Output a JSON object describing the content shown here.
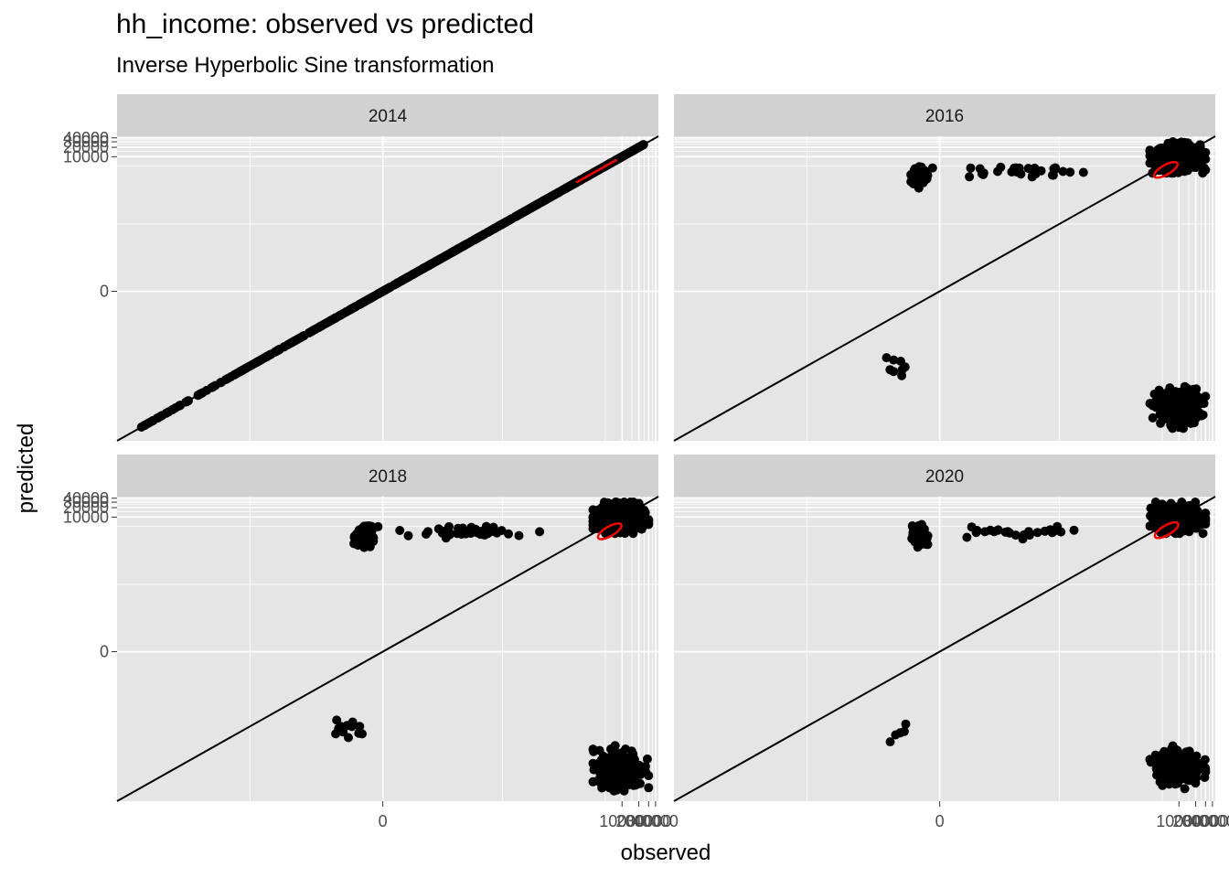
{
  "title": "hh_income: observed vs predicted",
  "subtitle": "Inverse Hyperbolic Sine transformation",
  "colors": {
    "panel_bg": "#e5e5e5",
    "strip_bg": "#d1d1d1",
    "grid": "#ffffff",
    "points": "#000000",
    "reference_line": "#000000",
    "ellipse": "#ff0000"
  },
  "chart_data": {
    "type": "scatter",
    "xlabel": "observed",
    "ylabel": "predicted",
    "scale": "asinh",
    "grid": true,
    "x_ticks": [
      "0",
      "10000",
      "20000",
      "30000",
      "40000"
    ],
    "y_ticks": [
      "0",
      "10000",
      "20000",
      "30000",
      "40000"
    ],
    "x_range": [
      -30000,
      45000
    ],
    "y_range": [
      -30000,
      45000
    ],
    "reference_line": "y = x",
    "panels": [
      {
        "label": "2014",
        "groups": [
          {
            "x": [
              -25000,
              -200,
              25000
            ],
            "y": [
              -25000,
              -200,
              25000
            ],
            "n": 700,
            "sd_x": 0,
            "sd_y": 0,
            "diag": true
          }
        ],
        "ellipse": {
          "type": "segment",
          "x": [
            1500,
            8000
          ],
          "y": [
            1500,
            8000
          ]
        }
      },
      {
        "label": "2016",
        "groups": [
          {
            "x": [
              3000,
              30000
            ],
            "y": [
              3000,
              30000
            ],
            "n": 430
          },
          {
            "x": [
              -1.5,
              -0.5
            ],
            "y": [
              1000,
              6000
            ],
            "n": 110
          },
          {
            "x": [
              -0.3,
              500
            ],
            "y": [
              2000,
              6000
            ],
            "n": 30
          },
          {
            "x": [
              3000,
              30000
            ],
            "y": [
              -12000,
              -500
            ],
            "n": 260
          },
          {
            "x": [
              -6,
              -1
            ],
            "y": [
              -400,
              -60
            ],
            "n": 8
          }
        ],
        "ellipse": {
          "cx": 5800,
          "cy": 3800,
          "rx": 0.55,
          "ry": 0.35
        }
      },
      {
        "label": "2018",
        "groups": [
          {
            "x": [
              3000,
              30000
            ],
            "y": [
              3000,
              30000
            ],
            "n": 440
          },
          {
            "x": [
              -1.5,
              -0.4
            ],
            "y": [
              1000,
              6000
            ],
            "n": 120
          },
          {
            "x": [
              -0.2,
              600
            ],
            "y": [
              2000,
              6000
            ],
            "n": 40
          },
          {
            "x": [
              3000,
              30000
            ],
            "y": [
              -14000,
              -500
            ],
            "n": 280
          },
          {
            "x": [
              -6,
              -0.5
            ],
            "y": [
              -400,
              -60
            ],
            "n": 12
          }
        ],
        "ellipse": {
          "cx": 6000,
          "cy": 3500,
          "rx": 0.55,
          "ry": 0.35
        }
      },
      {
        "label": "2020",
        "groups": [
          {
            "x": [
              3000,
              30000
            ],
            "y": [
              3000,
              30000
            ],
            "n": 420
          },
          {
            "x": [
              -1.5,
              -0.5
            ],
            "y": [
              1000,
              6000
            ],
            "n": 100
          },
          {
            "x": [
              -0.3,
              500
            ],
            "y": [
              2000,
              6000
            ],
            "n": 25
          },
          {
            "x": [
              3000,
              30000
            ],
            "y": [
              -12000,
              -500
            ],
            "n": 220
          },
          {
            "x": [
              -6,
              -1
            ],
            "y": [
              -400,
              -60
            ],
            "n": 5
          }
        ],
        "ellipse": {
          "cx": 6000,
          "cy": 3800,
          "rx": 0.55,
          "ry": 0.35
        }
      }
    ]
  }
}
